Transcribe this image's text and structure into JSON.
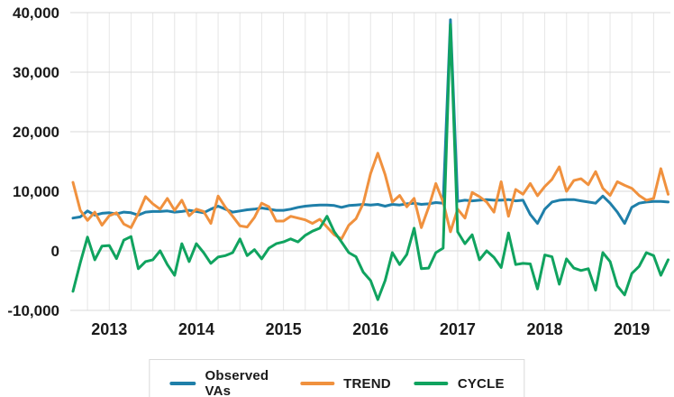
{
  "chart_data": {
    "type": "line",
    "x_unit": "month",
    "x_start": "2012-08",
    "x_end": "2019-06",
    "n_points": 83,
    "x_tick_labels": [
      "2013",
      "2014",
      "2015",
      "2016",
      "2017",
      "2018",
      "2019"
    ],
    "x_tick_month_indices": [
      5,
      17,
      29,
      41,
      53,
      65,
      77
    ],
    "y_ticks": [
      -10000,
      0,
      10000,
      20000,
      30000,
      40000
    ],
    "y_tick_labels": [
      "-10,000",
      "0",
      "10,000",
      "20,000",
      "30,000",
      "40,000"
    ],
    "ylim": [
      -10000,
      40000
    ],
    "grid": {
      "horizontal": true,
      "vertical": "quarterly",
      "h_color": "#d9d9d9",
      "v_color": "#e6e6e6"
    },
    "legend_position": "bottom",
    "annotations": [
      "spike at 2016-12 in Observed VAs and CYCLE"
    ],
    "series": [
      {
        "name": "Observed VAs",
        "color": "#1f7fa9",
        "values": [
          5500,
          5700,
          6700,
          6000,
          6300,
          6400,
          6200,
          6500,
          6400,
          6000,
          6500,
          6600,
          6600,
          6700,
          6500,
          6600,
          6800,
          6600,
          6400,
          7000,
          7500,
          7000,
          6500,
          6700,
          6900,
          7000,
          7200,
          7000,
          6800,
          6800,
          7000,
          7300,
          7500,
          7600,
          7700,
          7700,
          7600,
          7300,
          7600,
          7700,
          7800,
          7700,
          7800,
          7500,
          7800,
          7700,
          7900,
          8000,
          7800,
          7900,
          8100,
          8000,
          38800,
          8300,
          8500,
          8400,
          8500,
          8600,
          8500,
          8500,
          8600,
          8400,
          8500,
          6100,
          4600,
          7000,
          8200,
          8500,
          8600,
          8600,
          8400,
          8200,
          8000,
          9200,
          8000,
          6500,
          4600,
          7300,
          8000,
          8200,
          8300,
          8300,
          8200
        ]
      },
      {
        "name": "TREND",
        "color": "#f0913e",
        "values": [
          11500,
          6800,
          5100,
          6500,
          4300,
          5900,
          6400,
          4500,
          3900,
          6300,
          9100,
          7900,
          7000,
          8800,
          6800,
          8500,
          5900,
          7000,
          6600,
          4600,
          9200,
          7300,
          5800,
          4200,
          4000,
          5600,
          8000,
          7400,
          5000,
          5000,
          5800,
          5500,
          5200,
          4600,
          5300,
          4000,
          2700,
          2000,
          4300,
          5400,
          8000,
          13000,
          16400,
          12800,
          8200,
          9300,
          7400,
          8800,
          3900,
          7300,
          11300,
          8200,
          3200,
          7000,
          5500,
          9800,
          9100,
          8200,
          6500,
          11600,
          5800,
          10300,
          9500,
          11300,
          9250,
          10800,
          12000,
          14100,
          10000,
          11800,
          12100,
          11100,
          13300,
          10500,
          9300,
          11600,
          11000,
          10500,
          9300,
          8500,
          8800,
          13800,
          9500
        ]
      },
      {
        "name": "CYCLE",
        "color": "#10a35f",
        "values": [
          -6800,
          -2000,
          2300,
          -1500,
          800,
          900,
          -1300,
          1800,
          2400,
          -3000,
          -1800,
          -1500,
          0,
          -2300,
          -4100,
          1200,
          -1800,
          1200,
          -300,
          -2100,
          -1050,
          -800,
          -300,
          2000,
          -800,
          200,
          -1350,
          450,
          1200,
          1500,
          2000,
          1500,
          2600,
          3300,
          3800,
          5800,
          3200,
          1500,
          -300,
          -1000,
          -3600,
          -5000,
          -8200,
          -5000,
          -300,
          -2300,
          -600,
          3800,
          -3000,
          -2900,
          -300,
          450,
          38000,
          3200,
          1200,
          2700,
          -1500,
          0,
          -1100,
          -2800,
          3000,
          -2300,
          -2100,
          -2200,
          -6400,
          -700,
          -1000,
          -5600,
          -1350,
          -2900,
          -3300,
          -3000,
          -6600,
          -300,
          -1800,
          -5900,
          -7400,
          -3800,
          -2600,
          -300,
          -800,
          -4100,
          -1500
        ]
      }
    ]
  },
  "legend": {
    "items": [
      {
        "label": "Observed VAs"
      },
      {
        "label": "TREND"
      },
      {
        "label": "CYCLE"
      }
    ]
  },
  "style": {
    "tick_label_color": "#1a1a1a",
    "background": "#ffffff",
    "legend_border": "#d9d9d9"
  }
}
